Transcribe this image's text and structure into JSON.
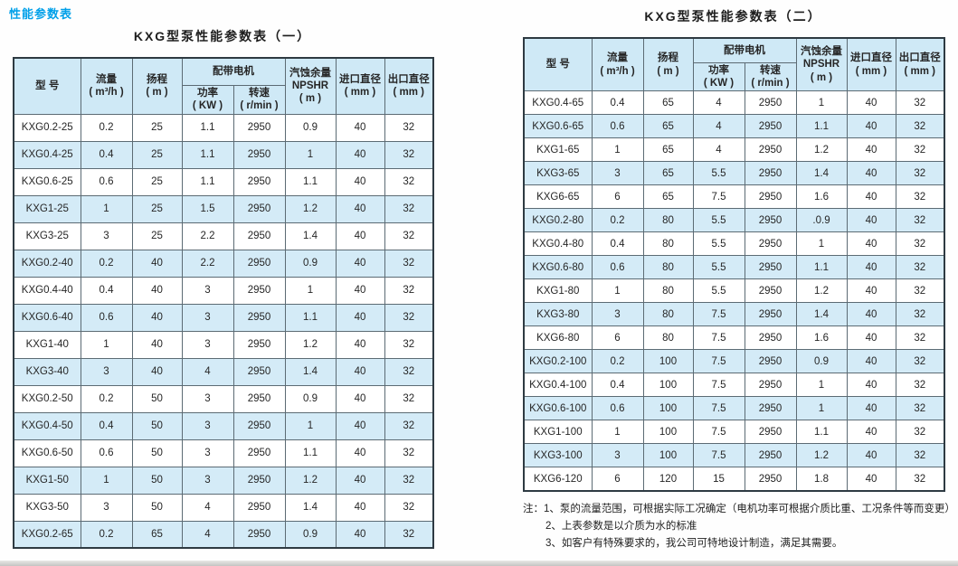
{
  "section_title": "性能参数表",
  "colors": {
    "accent": "#00a0e9",
    "stripe": "#d4ebf7",
    "header_bg": "#cfe9f6",
    "border": "#2e3a42"
  },
  "headers": {
    "model": "型  号",
    "flow_name": "流量",
    "flow_unit": "( m³/h )",
    "head_name": "扬程",
    "head_unit": "( m )",
    "motor": "配带电机",
    "power_name": "功率",
    "power_unit": "( KW )",
    "speed_name": "转速",
    "speed_unit": "( r/min )",
    "npshr_name": "汽蚀余量",
    "npshr_code": "NPSHR",
    "npshr_unit": "( m )",
    "inlet_name": "进口直径",
    "inlet_unit": "( mm )",
    "outlet_name": "出口直径",
    "outlet_unit": "( mm )"
  },
  "tables": [
    {
      "title": "KXG型泵性能参数表（一）",
      "rows": [
        [
          "KXG0.2-25",
          "0.2",
          "25",
          "1.1",
          "2950",
          "0.9",
          "40",
          "32"
        ],
        [
          "KXG0.4-25",
          "0.4",
          "25",
          "1.1",
          "2950",
          "1",
          "40",
          "32"
        ],
        [
          "KXG0.6-25",
          "0.6",
          "25",
          "1.1",
          "2950",
          "1.1",
          "40",
          "32"
        ],
        [
          "KXG1-25",
          "1",
          "25",
          "1.5",
          "2950",
          "1.2",
          "40",
          "32"
        ],
        [
          "KXG3-25",
          "3",
          "25",
          "2.2",
          "2950",
          "1.4",
          "40",
          "32"
        ],
        [
          "KXG0.2-40",
          "0.2",
          "40",
          "2.2",
          "2950",
          "0.9",
          "40",
          "32"
        ],
        [
          "KXG0.4-40",
          "0.4",
          "40",
          "3",
          "2950",
          "1",
          "40",
          "32"
        ],
        [
          "KXG0.6-40",
          "0.6",
          "40",
          "3",
          "2950",
          "1.1",
          "40",
          "32"
        ],
        [
          "KXG1-40",
          "1",
          "40",
          "3",
          "2950",
          "1.2",
          "40",
          "32"
        ],
        [
          "KXG3-40",
          "3",
          "40",
          "4",
          "2950",
          "1.4",
          "40",
          "32"
        ],
        [
          "KXG0.2-50",
          "0.2",
          "50",
          "3",
          "2950",
          "0.9",
          "40",
          "32"
        ],
        [
          "KXG0.4-50",
          "0.4",
          "50",
          "3",
          "2950",
          "1",
          "40",
          "32"
        ],
        [
          "KXG0.6-50",
          "0.6",
          "50",
          "3",
          "2950",
          "1.1",
          "40",
          "32"
        ],
        [
          "KXG1-50",
          "1",
          "50",
          "3",
          "2950",
          "1.2",
          "40",
          "32"
        ],
        [
          "KXG3-50",
          "3",
          "50",
          "4",
          "2950",
          "1.4",
          "40",
          "32"
        ],
        [
          "KXG0.2-65",
          "0.2",
          "65",
          "4",
          "2950",
          "0.9",
          "40",
          "32"
        ]
      ]
    },
    {
      "title": "KXG型泵性能参数表（二）",
      "rows": [
        [
          "KXG0.4-65",
          "0.4",
          "65",
          "4",
          "2950",
          "1",
          "40",
          "32"
        ],
        [
          "KXG0.6-65",
          "0.6",
          "65",
          "4",
          "2950",
          "1.1",
          "40",
          "32"
        ],
        [
          "KXG1-65",
          "1",
          "65",
          "4",
          "2950",
          "1.2",
          "40",
          "32"
        ],
        [
          "KXG3-65",
          "3",
          "65",
          "5.5",
          "2950",
          "1.4",
          "40",
          "32"
        ],
        [
          "KXG6-65",
          "6",
          "65",
          "7.5",
          "2950",
          "1.6",
          "40",
          "32"
        ],
        [
          "KXG0.2-80",
          "0.2",
          "80",
          "5.5",
          "2950",
          ".0.9",
          "40",
          "32"
        ],
        [
          "KXG0.4-80",
          "0.4",
          "80",
          "5.5",
          "2950",
          "1",
          "40",
          "32"
        ],
        [
          "KXG0.6-80",
          "0.6",
          "80",
          "5.5",
          "2950",
          "1.1",
          "40",
          "32"
        ],
        [
          "KXG1-80",
          "1",
          "80",
          "5.5",
          "2950",
          "1.2",
          "40",
          "32"
        ],
        [
          "KXG3-80",
          "3",
          "80",
          "7.5",
          "2950",
          "1.4",
          "40",
          "32"
        ],
        [
          "KXG6-80",
          "6",
          "80",
          "7.5",
          "2950",
          "1.6",
          "40",
          "32"
        ],
        [
          "KXG0.2-100",
          "0.2",
          "100",
          "7.5",
          "2950",
          "0.9",
          "40",
          "32"
        ],
        [
          "KXG0.4-100",
          "0.4",
          "100",
          "7.5",
          "2950",
          "1",
          "40",
          "32"
        ],
        [
          "KXG0.6-100",
          "0.6",
          "100",
          "7.5",
          "2950",
          "1",
          "40",
          "32"
        ],
        [
          "KXG1-100",
          "1",
          "100",
          "7.5",
          "2950",
          "1.1",
          "40",
          "32"
        ],
        [
          "KXG3-100",
          "3",
          "100",
          "7.5",
          "2950",
          "1.2",
          "40",
          "32"
        ],
        [
          "KXG6-120",
          "6",
          "120",
          "15",
          "2950",
          "1.8",
          "40",
          "32"
        ]
      ]
    }
  ],
  "notes": {
    "prefix": "注：",
    "items": [
      "1、泵的流量范围，可根据实际工况确定（电机功率可根据介质比重、工况条件等而变更）",
      "2、上表参数是以介质为水的标准",
      "3、如客户有特殊要求的，我公司可特地设计制造，满足其需要。"
    ]
  }
}
